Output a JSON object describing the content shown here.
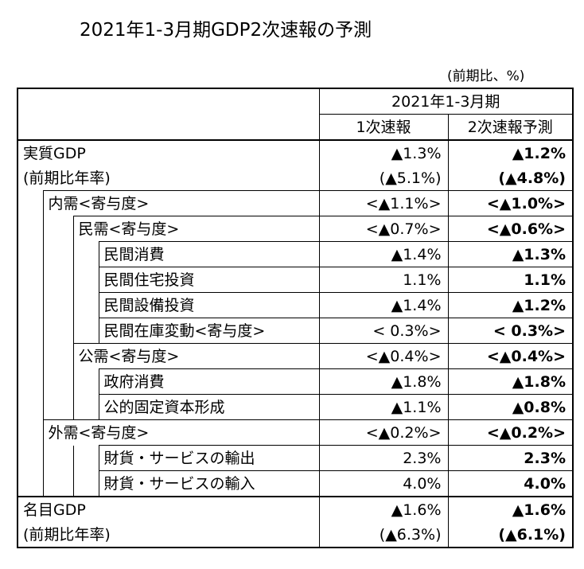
{
  "title": "2021年1-3月期GDP2次速報の予測",
  "unit": "(前期比、%)",
  "header": {
    "period": "2021年1-3月期",
    "col1": "1次速報",
    "col2": "2次速報予測"
  },
  "rows": [
    {
      "label": "実質GDP",
      "v1": "▲1.3%",
      "v2": "▲1.2%"
    },
    {
      "label": "(前期比年率)",
      "v1": "(▲5.1%)",
      "v2": "(▲4.8%)"
    },
    {
      "label": "内需<寄与度>",
      "v1": "<▲1.1%>",
      "v2": "<▲1.0%>"
    },
    {
      "label": "民需<寄与度>",
      "v1": "<▲0.7%>",
      "v2": "<▲0.6%>"
    },
    {
      "label": "民間消費",
      "v1": "▲1.4%",
      "v2": "▲1.3%"
    },
    {
      "label": "民間住宅投資",
      "v1": "1.1%",
      "v2": "1.1%"
    },
    {
      "label": "民間設備投資",
      "v1": "▲1.4%",
      "v2": "▲1.2%"
    },
    {
      "label": "民間在庫変動<寄与度>",
      "v1": "< 0.3%>",
      "v2": "< 0.3%>"
    },
    {
      "label": "公需<寄与度>",
      "v1": "<▲0.4%>",
      "v2": "<▲0.4%>"
    },
    {
      "label": "政府消費",
      "v1": "▲1.8%",
      "v2": "▲1.8%"
    },
    {
      "label": "公的固定資本形成",
      "v1": "▲1.1%",
      "v2": "▲0.8%"
    },
    {
      "label": "外需<寄与度>",
      "v1": "<▲0.2%>",
      "v2": "<▲0.2%>"
    },
    {
      "label": "財貨・サービスの輸出",
      "v1": "2.3%",
      "v2": "2.3%"
    },
    {
      "label": "財貨・サービスの輸入",
      "v1": "4.0%",
      "v2": "4.0%"
    },
    {
      "label": "名目GDP",
      "v1": "▲1.6%",
      "v2": "▲1.6%"
    },
    {
      "label": "(前期比年率)",
      "v1": "(▲6.3%)",
      "v2": "(▲6.1%)"
    }
  ]
}
